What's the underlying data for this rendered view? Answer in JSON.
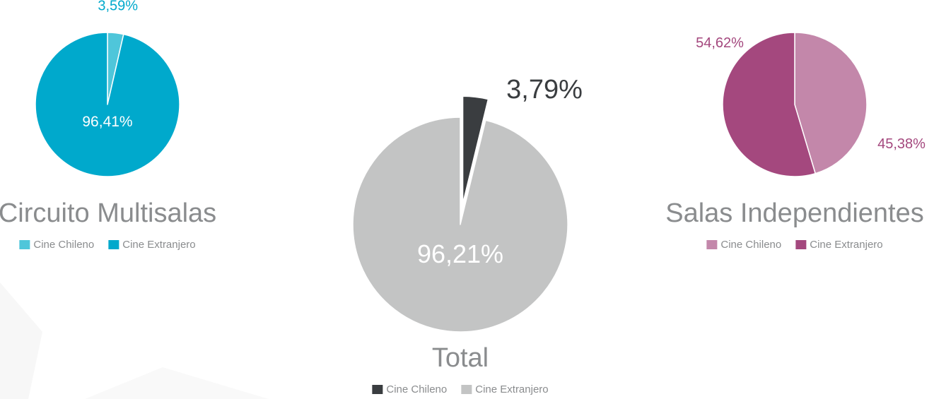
{
  "chart_data": [
    {
      "type": "pie",
      "title": "Circuito Multisalas",
      "slices": [
        {
          "name": "Cine Chileno",
          "value": 3.59,
          "label": "3,59%",
          "color": "#4fc6da"
        },
        {
          "name": "Cine Extranjero",
          "value": 96.41,
          "label": "96,41%",
          "color": "#00a9cc"
        }
      ],
      "label_color": "#00a9cc",
      "legend": [
        "Cine Chileno",
        "Cine Extranjero"
      ]
    },
    {
      "type": "pie",
      "title": "Total",
      "slices": [
        {
          "name": "Cine Chileno",
          "value": 3.79,
          "label": "3,79%",
          "color": "#3a3d40",
          "exploded": true
        },
        {
          "name": "Cine Extranjero",
          "value": 96.21,
          "label": "96,21%",
          "color": "#c3c4c4"
        }
      ],
      "label_color": "#3a3d40",
      "legend": [
        "Cine Chileno",
        "Cine Extranjero"
      ]
    },
    {
      "type": "pie",
      "title": "Salas Independientes",
      "slices": [
        {
          "name": "Cine Chileno",
          "value": 45.38,
          "label": "45,38%",
          "color": "#c387aa"
        },
        {
          "name": "Cine Extranjero",
          "value": 54.62,
          "label": "54,62%",
          "color": "#a4487e"
        }
      ],
      "label_color": "#a4487e",
      "legend": [
        "Cine Chileno",
        "Cine Extranjero"
      ]
    }
  ]
}
